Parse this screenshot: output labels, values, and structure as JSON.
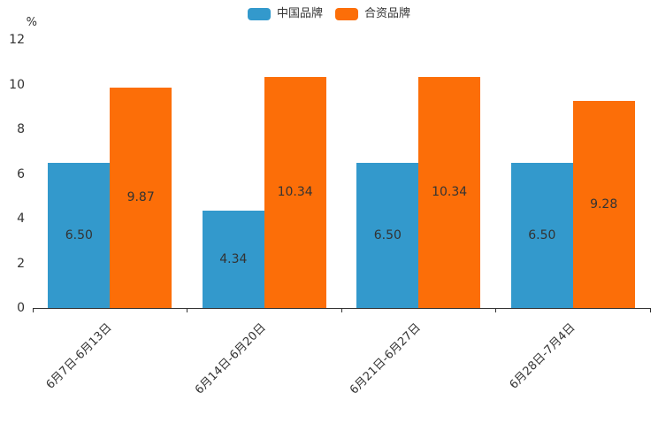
{
  "chart_data": {
    "type": "bar",
    "title": "",
    "categories": [
      "6月7日-6月13日",
      "6月14日-6月20日",
      "6月21日-6月27日",
      "6月28日-7月4日"
    ],
    "series": [
      {
        "name": "中国品牌",
        "color": "#3399CC",
        "values": [
          6.5,
          4.34,
          6.5,
          6.5
        ]
      },
      {
        "name": "合资品牌",
        "color": "#FC6E08",
        "values": [
          9.87,
          10.34,
          10.34,
          9.28
        ]
      }
    ],
    "xlabel": "",
    "ylabel": "%",
    "ylim": [
      0,
      12
    ],
    "yticks": [
      12,
      10,
      8,
      6,
      4,
      2,
      0
    ],
    "grid": false,
    "legend_position": "top-center",
    "value_label_position": "inside-center",
    "value_label_decimals": 2
  },
  "colors": {
    "axis": "#333333",
    "text": "#333333",
    "background": "#FFFFFF",
    "series_blue": "#3399CC",
    "series_orange": "#FC6E08"
  }
}
